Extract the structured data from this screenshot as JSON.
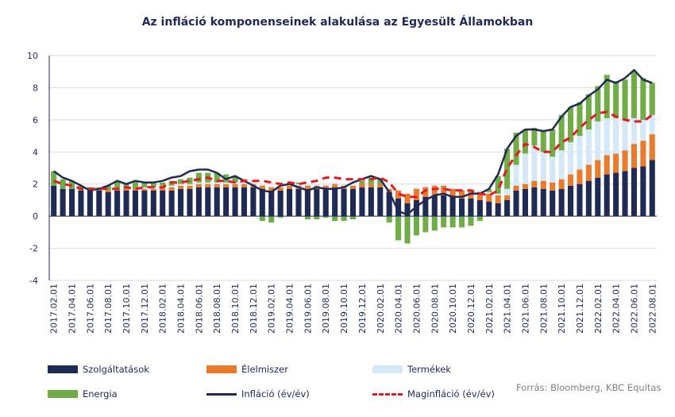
{
  "chart_data": {
    "type": "bar",
    "title": "Az infláció komponenseinek alakulása az Egyesült Államokban",
    "stacked": true,
    "ylim": [
      -4,
      10
    ],
    "yticks": [
      -4,
      -2,
      0,
      2,
      4,
      6,
      8,
      10
    ],
    "xtick_labels": [
      "2017.02.01",
      "2017.04.01",
      "2017.06.01",
      "2017.08.01",
      "2017.10.01",
      "2017.12.01",
      "2018.02.01",
      "2018.04.01",
      "2018.06.01",
      "2018.08.01",
      "2018.10.01",
      "2018.12.01",
      "2019.02.01",
      "2019.04.01",
      "2019.06.01",
      "2019.08.01",
      "2019.10.01",
      "2019.12.01",
      "2020.02.01",
      "2020.04.01",
      "2020.06.01",
      "2020.08.01",
      "2020.10.01",
      "2020.12.01",
      "2021.02.01",
      "2021.04.01",
      "2021.06.01",
      "2021.08.01",
      "2021.10.01",
      "2021.12.01",
      "2022.02.01",
      "2022.04.01",
      "2022.06.01",
      "2022.08.01"
    ],
    "categories": [
      "2017.02.01",
      "2017.03.01",
      "2017.04.01",
      "2017.05.01",
      "2017.06.01",
      "2017.07.01",
      "2017.08.01",
      "2017.09.01",
      "2017.10.01",
      "2017.11.01",
      "2017.12.01",
      "2018.01.01",
      "2018.02.01",
      "2018.03.01",
      "2018.04.01",
      "2018.05.01",
      "2018.06.01",
      "2018.07.01",
      "2018.08.01",
      "2018.09.01",
      "2018.10.01",
      "2018.11.01",
      "2018.12.01",
      "2019.01.01",
      "2019.02.01",
      "2019.03.01",
      "2019.04.01",
      "2019.05.01",
      "2019.06.01",
      "2019.07.01",
      "2019.08.01",
      "2019.09.01",
      "2019.10.01",
      "2019.11.01",
      "2019.12.01",
      "2020.01.01",
      "2020.02.01",
      "2020.03.01",
      "2020.04.01",
      "2020.05.01",
      "2020.06.01",
      "2020.07.01",
      "2020.08.01",
      "2020.09.01",
      "2020.10.01",
      "2020.11.01",
      "2020.12.01",
      "2021.01.01",
      "2021.02.01",
      "2021.03.01",
      "2021.04.01",
      "2021.05.01",
      "2021.06.01",
      "2021.07.01",
      "2021.08.01",
      "2021.09.01",
      "2021.10.01",
      "2021.11.01",
      "2021.12.01",
      "2022.01.01",
      "2022.02.01",
      "2022.03.01",
      "2022.04.01",
      "2022.05.01",
      "2022.06.01",
      "2022.07.01",
      "2022.08.01"
    ],
    "series": [
      {
        "name": "Szolgáltatások",
        "kind": "bar",
        "color": "#1f2a55",
        "values": [
          1.9,
          1.7,
          1.7,
          1.6,
          1.6,
          1.6,
          1.5,
          1.6,
          1.6,
          1.6,
          1.6,
          1.6,
          1.6,
          1.6,
          1.7,
          1.7,
          1.8,
          1.8,
          1.8,
          1.8,
          1.8,
          1.8,
          1.8,
          1.7,
          1.6,
          1.6,
          1.7,
          1.7,
          1.7,
          1.7,
          1.7,
          1.8,
          1.7,
          1.7,
          1.8,
          1.8,
          1.8,
          1.5,
          1.1,
          0.8,
          1.0,
          1.2,
          1.3,
          1.3,
          1.2,
          1.1,
          1.1,
          1.0,
          0.9,
          0.8,
          1.0,
          1.6,
          1.7,
          1.8,
          1.7,
          1.6,
          1.7,
          1.9,
          2.0,
          2.2,
          2.4,
          2.6,
          2.7,
          2.8,
          3.0,
          3.1,
          3.5
        ]
      },
      {
        "name": "Élelmiszer",
        "kind": "bar",
        "color": "#e97b2e",
        "values": [
          0.0,
          0.0,
          0.0,
          0.0,
          0.0,
          0.0,
          0.1,
          0.1,
          0.1,
          0.1,
          0.1,
          0.1,
          0.2,
          0.2,
          0.2,
          0.2,
          0.2,
          0.2,
          0.2,
          0.2,
          0.2,
          0.2,
          0.2,
          0.2,
          0.2,
          0.2,
          0.2,
          0.2,
          0.2,
          0.2,
          0.2,
          0.2,
          0.2,
          0.2,
          0.2,
          0.2,
          0.2,
          0.2,
          0.5,
          0.6,
          0.7,
          0.6,
          0.6,
          0.6,
          0.5,
          0.5,
          0.5,
          0.5,
          0.5,
          0.5,
          0.3,
          0.3,
          0.3,
          0.4,
          0.5,
          0.5,
          0.6,
          0.7,
          0.9,
          1.0,
          1.1,
          1.2,
          1.2,
          1.3,
          1.5,
          1.6,
          1.6
        ]
      },
      {
        "name": "Termékek",
        "kind": "bar",
        "color": "#d5e8f7",
        "values": [
          0.0,
          0.0,
          0.0,
          0.0,
          0.0,
          0.0,
          0.0,
          0.0,
          0.0,
          0.0,
          0.1,
          0.1,
          0.1,
          0.1,
          0.1,
          0.1,
          0.1,
          0.1,
          0.1,
          0.1,
          0.1,
          0.1,
          0.1,
          0.1,
          0.1,
          0.1,
          0.1,
          0.1,
          0.1,
          0.1,
          0.1,
          0.1,
          0.1,
          0.0,
          0.0,
          0.0,
          0.0,
          0.0,
          0.0,
          0.0,
          0.1,
          0.1,
          0.1,
          0.1,
          0.1,
          0.1,
          0.1,
          0.1,
          0.1,
          0.1,
          0.4,
          1.3,
          1.9,
          2.2,
          1.8,
          1.6,
          1.8,
          2.0,
          2.1,
          2.2,
          2.4,
          2.3,
          2.2,
          1.9,
          1.6,
          1.3,
          1.2
        ]
      },
      {
        "name": "Energia",
        "kind": "bar",
        "color": "#70ad47",
        "values": [
          0.9,
          0.6,
          0.5,
          0.3,
          0.2,
          0.2,
          0.3,
          0.5,
          0.3,
          0.5,
          0.3,
          0.3,
          0.2,
          0.3,
          0.3,
          0.4,
          0.6,
          0.6,
          0.6,
          0.5,
          0.4,
          0.2,
          0.0,
          -0.3,
          -0.4,
          -0.1,
          0.1,
          0.1,
          -0.2,
          -0.2,
          -0.1,
          -0.3,
          -0.3,
          -0.2,
          0.2,
          0.4,
          0.3,
          -0.4,
          -1.5,
          -1.7,
          -1.2,
          -1.0,
          -0.9,
          -0.7,
          -0.7,
          -0.7,
          -0.6,
          -0.3,
          0.2,
          1.1,
          2.5,
          2.0,
          1.5,
          1.1,
          1.3,
          1.7,
          2.2,
          2.2,
          2.1,
          2.2,
          2.2,
          2.7,
          2.3,
          2.5,
          2.9,
          2.6,
          2.0
        ]
      },
      {
        "name": "Infláció (év/év)",
        "kind": "line",
        "color": "#1f2a55",
        "values": [
          2.8,
          2.4,
          2.2,
          1.9,
          1.6,
          1.7,
          1.9,
          2.2,
          2.0,
          2.2,
          2.1,
          2.1,
          2.2,
          2.4,
          2.5,
          2.8,
          2.9,
          2.9,
          2.7,
          2.3,
          2.5,
          2.2,
          1.9,
          1.6,
          1.5,
          1.9,
          2.0,
          1.8,
          1.6,
          1.8,
          1.7,
          1.7,
          1.8,
          2.1,
          2.3,
          2.5,
          2.3,
          1.5,
          0.3,
          0.1,
          0.6,
          1.0,
          1.3,
          1.4,
          1.2,
          1.2,
          1.4,
          1.4,
          1.7,
          2.6,
          4.2,
          5.0,
          5.4,
          5.4,
          5.3,
          5.4,
          6.2,
          6.8,
          7.0,
          7.5,
          7.9,
          8.5,
          8.3,
          8.6,
          9.1,
          8.5,
          8.3
        ]
      },
      {
        "name": "Maginfláció (év/év)",
        "kind": "line",
        "dashed": true,
        "color": "#e11b22",
        "values": [
          2.2,
          2.0,
          1.9,
          1.7,
          1.7,
          1.7,
          1.7,
          1.7,
          1.8,
          1.7,
          1.8,
          1.8,
          1.8,
          2.1,
          2.1,
          2.2,
          2.3,
          2.4,
          2.2,
          2.2,
          2.1,
          2.2,
          2.2,
          2.2,
          2.1,
          2.0,
          2.1,
          2.0,
          2.1,
          2.2,
          2.4,
          2.4,
          2.3,
          2.3,
          2.3,
          2.3,
          2.4,
          2.1,
          1.4,
          1.2,
          1.2,
          1.6,
          1.7,
          1.7,
          1.6,
          1.6,
          1.6,
          1.4,
          1.3,
          1.6,
          3.0,
          3.8,
          4.5,
          4.3,
          4.0,
          4.0,
          4.6,
          4.9,
          5.5,
          6.0,
          6.4,
          6.5,
          6.2,
          6.0,
          5.9,
          5.9,
          6.3
        ]
      }
    ]
  },
  "legend": [
    {
      "label": "Szolgáltatások",
      "kind": "bar",
      "color": "#1f2a55"
    },
    {
      "label": "Élelmiszer",
      "kind": "bar",
      "color": "#e97b2e"
    },
    {
      "label": "Termékek",
      "kind": "bar",
      "color": "#d5e8f7"
    },
    {
      "label": "Energia",
      "kind": "bar",
      "color": "#70ad47"
    },
    {
      "label": "Infláció (év/év)",
      "kind": "line",
      "color": "#1f2a55"
    },
    {
      "label": "Maginfláció (év/év)",
      "kind": "dash",
      "color": "#e11b22"
    }
  ],
  "source": "Forrás: Bloomberg, KBC Equitas"
}
